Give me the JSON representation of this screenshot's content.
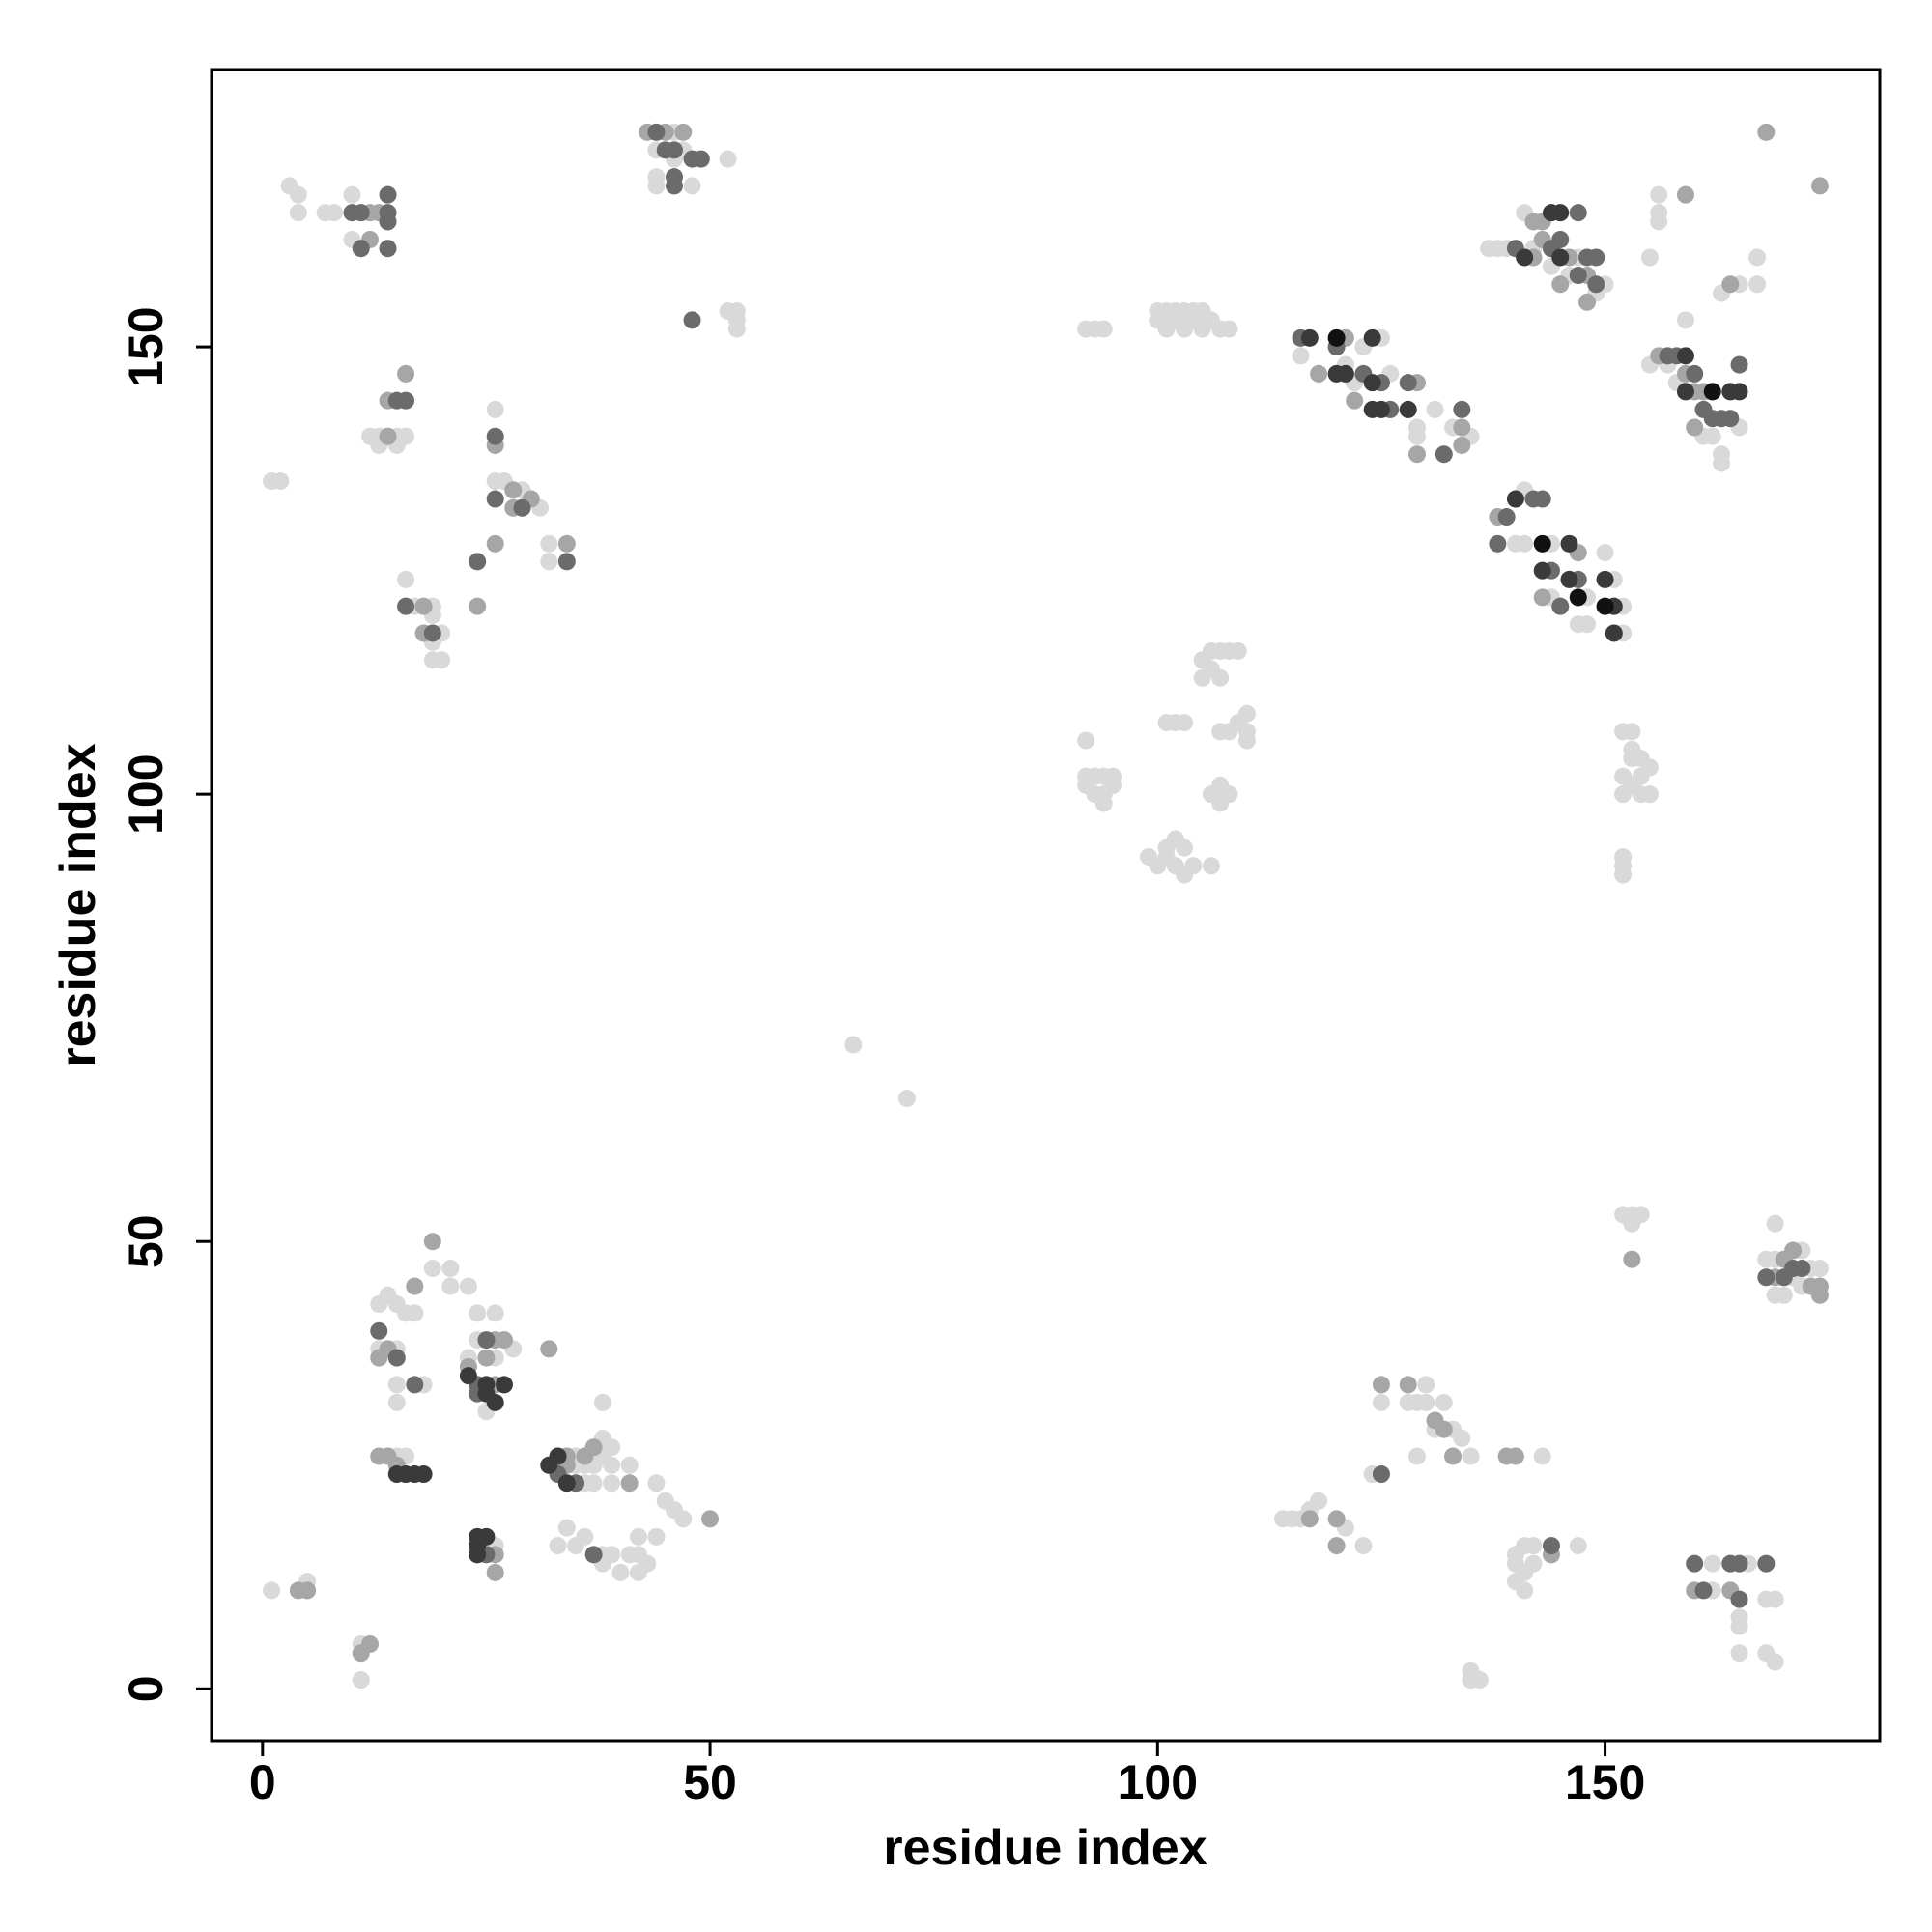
{
  "chart_data": {
    "type": "scatter",
    "x_label": "residue index",
    "y_label": "residue index",
    "xlim": [
      -5.7,
      180.7
    ],
    "ylim": [
      -5.8,
      181
    ],
    "xticks": [
      0,
      50,
      100,
      150
    ],
    "yticks": [
      0,
      50,
      100,
      150
    ],
    "series": [
      {
        "color": "#d9d9d9",
        "x": [
          3,
          4,
          4,
          7,
          8,
          10,
          10,
          12,
          13,
          15,
          16,
          13,
          15,
          26,
          26,
          27,
          29,
          31,
          32,
          32,
          16,
          17,
          19,
          19,
          20,
          19,
          19,
          20,
          1,
          2,
          46,
          44,
          47,
          46,
          44,
          48,
          44,
          52,
          52,
          53,
          53,
          53,
          92,
          93,
          94,
          100,
          101,
          102,
          103,
          104,
          105,
          100,
          102,
          104,
          106,
          101,
          103,
          105,
          107,
          108,
          123,
          125,
          121,
          122,
          126,
          129,
          129,
          131,
          133,
          135,
          116,
          137,
          138,
          139,
          142,
          141,
          147,
          146,
          150,
          149,
          144,
          156,
          156,
          156,
          155,
          163,
          165,
          167,
          167,
          159,
          155,
          157,
          158,
          165,
          161,
          162,
          163,
          163,
          141,
          140,
          141,
          144,
          150,
          151,
          144,
          148,
          152,
          147,
          148,
          152,
          106,
          107,
          108,
          109,
          105,
          106,
          107,
          105,
          110,
          110,
          109,
          108,
          107,
          110,
          101,
          102,
          103,
          92,
          93,
          94,
          95,
          92,
          93,
          94,
          95,
          94,
          92,
          107,
          108,
          107,
          106,
          101,
          102,
          103,
          101,
          102,
          103,
          99,
          100,
          104,
          106,
          152,
          153,
          153,
          154,
          155,
          152,
          153,
          154,
          155,
          152,
          154,
          152,
          152,
          152,
          153,
          66,
          72,
          152,
          153,
          154,
          153,
          169,
          168,
          169,
          172,
          173,
          174,
          171,
          169,
          170,
          172,
          130,
          128,
          129,
          130,
          132,
          133,
          134,
          131,
          135,
          129,
          125,
          143,
          124,
          114,
          115,
          116,
          117,
          118,
          121,
          123,
          140,
          141,
          142,
          147,
          140,
          141,
          140,
          141,
          142,
          162,
          166,
          162,
          168,
          169,
          165,
          165,
          165,
          168,
          169,
          135,
          136,
          135,
          19,
          21,
          21,
          23,
          13,
          14,
          15,
          16,
          17,
          13,
          15,
          18,
          15,
          15,
          24,
          26,
          24,
          28,
          23,
          26,
          25,
          15,
          16,
          35,
          38,
          39,
          38,
          35,
          36,
          37,
          39,
          36,
          37,
          39,
          41,
          38,
          44,
          45,
          46,
          47,
          44,
          42,
          33,
          35,
          34,
          36,
          38,
          39,
          38,
          40,
          41,
          42,
          43,
          42,
          26,
          5,
          1,
          11,
          11
        ],
        "values": [
          168,
          167,
          165,
          165,
          165,
          167,
          162,
          140,
          140,
          140,
          140,
          139,
          139,
          143,
          135,
          135,
          134,
          132,
          128,
          126,
          124,
          121,
          121,
          120,
          118,
          117,
          115,
          115,
          135,
          135,
          174,
          172,
          172,
          171,
          169,
          168,
          168,
          171,
          154,
          154,
          153,
          152,
          152,
          152,
          152,
          154,
          154,
          154,
          154,
          154,
          154,
          153,
          153,
          153,
          153,
          152,
          152,
          152,
          152,
          152,
          150,
          151,
          148,
          146,
          147,
          141,
          140,
          143,
          141,
          140,
          149,
          161,
          161,
          161,
          161,
          165,
          160,
          158,
          157,
          156,
          159,
          167,
          164,
          165,
          160,
          156,
          157,
          160,
          157,
          153,
          148,
          148,
          146,
          141,
          140,
          140,
          138,
          137,
          134,
          128,
          128,
          128,
          127,
          124,
          122,
          122,
          121,
          119,
          119,
          118,
          116,
          116,
          116,
          116,
          115,
          114,
          113,
          113,
          109,
          107,
          108,
          107,
          107,
          106,
          108,
          108,
          108,
          102,
          102,
          102,
          102,
          101,
          100,
          100,
          101,
          99,
          106,
          101,
          100,
          99,
          100,
          94,
          95,
          94,
          93,
          92,
          91,
          93,
          92,
          92,
          92,
          107,
          107,
          105,
          104,
          103,
          102,
          101,
          102,
          100,
          100,
          100,
          93,
          91,
          92,
          104,
          72,
          66,
          53,
          53,
          53,
          52,
          52,
          48,
          48,
          49,
          47,
          47,
          46,
          44,
          44,
          45,
          34,
          32,
          32,
          32,
          32,
          29,
          28,
          29,
          26,
          26,
          32,
          26,
          24,
          19,
          19,
          19,
          20,
          21,
          18,
          16,
          15,
          16,
          16,
          16,
          14,
          13,
          12,
          11,
          14,
          14,
          14,
          11,
          10,
          10,
          8,
          7,
          4,
          4,
          3,
          2,
          1,
          1,
          47,
          47,
          45,
          45,
          43,
          44,
          43,
          42,
          42,
          38,
          38,
          34,
          34,
          32,
          42,
          42,
          39,
          38,
          37,
          37,
          31,
          26,
          26,
          26,
          26,
          27,
          28,
          25,
          25,
          25,
          25,
          23,
          23,
          23,
          25,
          32,
          23,
          21,
          20,
          19,
          17,
          17,
          16,
          16,
          18,
          17,
          15,
          15,
          14,
          13,
          15,
          15,
          14,
          13,
          16,
          12,
          11,
          5,
          1
        ]
      },
      {
        "color": "#a6a6a6",
        "x": [
          12,
          12,
          13,
          16,
          14,
          14,
          28,
          30,
          28,
          34,
          26,
          18,
          18,
          24,
          26,
          43,
          45,
          47,
          121,
          129,
          129,
          134,
          134,
          118,
          122,
          142,
          143,
          143,
          146,
          148,
          148,
          145,
          142,
          159,
          164,
          168,
          174,
          156,
          159,
          160,
          161,
          160,
          138,
          147,
          143,
          153,
          171,
          170,
          169,
          173,
          174,
          174,
          128,
          131,
          132,
          133,
          125,
          139,
          140,
          117,
          120,
          120,
          144,
          160,
          164,
          19,
          17,
          13,
          14,
          26,
          27,
          25,
          26,
          32,
          23,
          13,
          14,
          15,
          34,
          36,
          37,
          34,
          41,
          50,
          26,
          26,
          4,
          5,
          12,
          11
        ],
        "values": [
          162,
          165,
          165,
          147,
          144,
          140,
          134,
          133,
          132,
          128,
          128,
          121,
          118,
          121,
          139,
          174,
          174,
          174,
          151,
          146,
          138,
          141,
          139,
          147,
          144,
          164,
          164,
          162,
          160,
          158,
          155,
          157,
          160,
          167,
          157,
          174,
          168,
          149,
          147,
          145,
          145,
          141,
          131,
          127,
          122,
          48,
          49,
          48,
          46,
          45,
          45,
          44,
          34,
          30,
          29,
          26,
          34,
          26,
          26,
          19,
          19,
          16,
          15,
          11,
          11,
          50,
          45,
          37,
          38,
          39,
          39,
          37,
          34,
          38,
          36,
          26,
          26,
          25,
          26,
          26,
          27,
          25,
          23,
          19,
          15,
          13,
          11,
          11,
          5,
          4
        ]
      },
      {
        "color": "#6b6b6b",
        "x": [
          10,
          11,
          14,
          14,
          14,
          11,
          14,
          15,
          16,
          26,
          29,
          34,
          26,
          24,
          16,
          19,
          44,
          45,
          46,
          48,
          49,
          46,
          46,
          48,
          116,
          120,
          123,
          125,
          128,
          126,
          132,
          134,
          140,
          144,
          145,
          147,
          148,
          149,
          147,
          149,
          157,
          158,
          160,
          165,
          162,
          163,
          164,
          161,
          139,
          142,
          143,
          138,
          144,
          147,
          145,
          125,
          144,
          160,
          164,
          165,
          168,
          161,
          165,
          171,
          172,
          168,
          170,
          13,
          15,
          17,
          25,
          24,
          24,
          33,
          35,
          37,
          25
        ],
        "values": [
          165,
          165,
          167,
          165,
          164,
          161,
          161,
          144,
          144,
          140,
          132,
          126,
          133,
          126,
          121,
          118,
          174,
          172,
          172,
          171,
          171,
          169,
          168,
          153,
          151,
          150,
          147,
          146,
          146,
          143,
          138,
          143,
          161,
          161,
          162,
          165,
          160,
          160,
          158,
          157,
          149,
          149,
          147,
          148,
          142,
          142,
          142,
          143,
          131,
          133,
          133,
          128,
          125,
          124,
          121,
          24,
          16,
          14,
          14,
          14,
          14,
          11,
          10,
          47,
          47,
          46,
          46,
          40,
          37,
          34,
          39,
          34,
          33,
          24,
          23,
          15,
          15
        ]
      },
      {
        "color": "#3a3a3a",
        "x": [
          117,
          124,
          120,
          121,
          124,
          124,
          125,
          128,
          141,
          144,
          145,
          145,
          159,
          159,
          164,
          165,
          140,
          146,
          143,
          146,
          150,
          151,
          151,
          23,
          25,
          27,
          25,
          26,
          15,
          16,
          17,
          18,
          33,
          32,
          34,
          24,
          25,
          24,
          24
        ],
        "values": [
          151,
          151,
          147,
          147,
          146,
          143,
          143,
          143,
          160,
          165,
          165,
          160,
          149,
          145,
          145,
          145,
          133,
          128,
          125,
          124,
          124,
          121,
          118,
          35,
          34,
          34,
          33,
          32,
          24,
          24,
          24,
          24,
          26,
          25,
          23,
          17,
          17,
          16,
          15
        ]
      },
      {
        "color": "#111111",
        "x": [
          120,
          162,
          143,
          147,
          150
        ],
        "values": [
          151,
          145,
          128,
          122,
          121
        ]
      }
    ]
  }
}
